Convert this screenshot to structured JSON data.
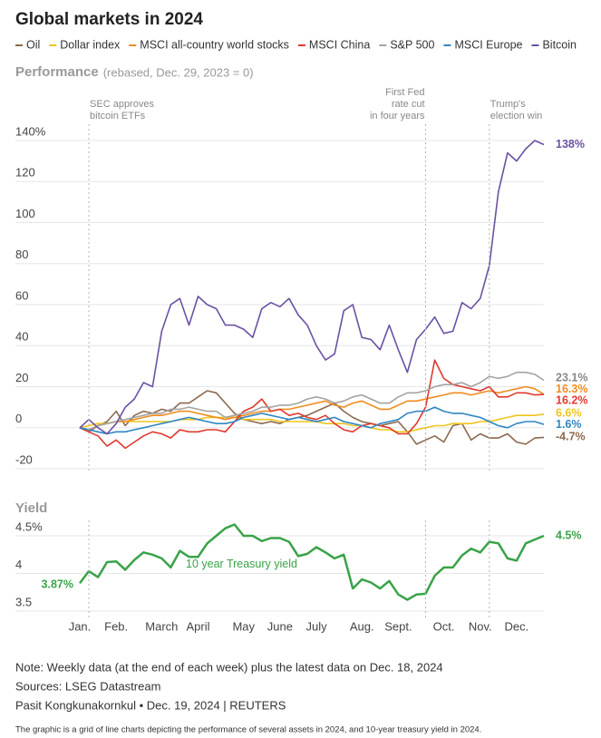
{
  "title": "Global markets in 2024",
  "chart_data": [
    {
      "type": "line",
      "title": "Performance",
      "subtitle": "(rebased, Dec. 29, 2023 = 0)",
      "ylim": [
        -20,
        140
      ],
      "yticks": [
        {
          "value": 140,
          "label": "140%"
        },
        120,
        100,
        80,
        60,
        40,
        20,
        0,
        -20
      ],
      "grid": true,
      "legend": "top",
      "annotations": [
        {
          "lines": [
            "SEC approves",
            "bitcoin ETFs"
          ],
          "x": 1,
          "align": "left"
        },
        {
          "lines": [
            "First Fed",
            "rate cut",
            "in four years"
          ],
          "x": 38,
          "align": "right"
        },
        {
          "lines": [
            "Trump's",
            "election win"
          ],
          "x": 45,
          "align": "left"
        }
      ],
      "series": [
        {
          "name": "Oil",
          "color": "#8c6a4f",
          "end_label": "-4.7%",
          "values": [
            0,
            -2,
            1,
            3,
            8,
            1,
            6,
            8,
            7,
            9,
            8,
            12,
            12,
            15,
            18,
            17,
            12,
            7,
            4,
            3,
            2,
            3,
            2,
            4,
            5,
            6,
            8,
            10,
            12,
            8,
            5,
            3,
            2,
            1,
            2,
            3,
            -2,
            -8,
            -6,
            -4,
            -7,
            1,
            2,
            -6,
            -3,
            -5,
            -5,
            -3,
            -7,
            -8,
            -5,
            -4.7
          ]
        },
        {
          "name": "Dollar index",
          "color": "#efc51c",
          "end_label": "6.6%",
          "values": [
            0,
            1,
            2,
            2,
            3,
            3,
            3,
            3,
            3,
            3,
            3,
            4,
            4,
            4,
            5,
            5,
            5,
            5,
            4,
            4,
            4,
            4,
            3,
            3,
            3,
            3,
            3,
            2,
            2,
            2,
            1,
            1,
            0,
            -1,
            -1,
            -2,
            -2,
            -1,
            0,
            1,
            1,
            2,
            2,
            2,
            3,
            3,
            4,
            5,
            6,
            6,
            6,
            6.6
          ]
        },
        {
          "name": "MSCI all-country world stocks",
          "color": "#f08c1f",
          "end_label": "16.3%",
          "values": [
            0,
            -1,
            1,
            2,
            3,
            3,
            4,
            5,
            6,
            6,
            7,
            8,
            8,
            7,
            6,
            5,
            4,
            5,
            6,
            7,
            8,
            8,
            9,
            9,
            10,
            11,
            12,
            13,
            11,
            10,
            12,
            13,
            11,
            9,
            9,
            11,
            13,
            13,
            14,
            15,
            16,
            17,
            17,
            16,
            17,
            18,
            17,
            18,
            19,
            20,
            19,
            16.3
          ]
        },
        {
          "name": "MSCI China",
          "color": "#e0392d",
          "end_label": "16.2%",
          "values": [
            0,
            -2,
            -4,
            -9,
            -6,
            -10,
            -7,
            -4,
            -2,
            -3,
            -5,
            -1,
            -2,
            -2,
            -1,
            -1,
            -2,
            3,
            8,
            10,
            14,
            8,
            9,
            6,
            7,
            5,
            4,
            6,
            2,
            -1,
            -2,
            1,
            2,
            1,
            0,
            -3,
            -3,
            2,
            10,
            33,
            24,
            21,
            20,
            19,
            18,
            20,
            15,
            15,
            17,
            17,
            16,
            16.2
          ]
        },
        {
          "name": "S&P 500",
          "color": "#a3a3a3",
          "end_label": "23.1%",
          "values": [
            0,
            -1,
            1,
            2,
            3,
            4,
            5,
            6,
            7,
            7,
            9,
            9,
            10,
            9,
            8,
            8,
            5,
            6,
            7,
            8,
            10,
            10,
            11,
            11,
            12,
            14,
            15,
            14,
            12,
            13,
            15,
            16,
            14,
            12,
            12,
            15,
            17,
            17,
            18,
            20,
            21,
            21,
            22,
            20,
            22,
            25,
            24,
            25,
            27,
            27,
            26,
            23.1
          ]
        },
        {
          "name": "MSCI Europe",
          "color": "#2f86c3",
          "end_label": "1.6%",
          "values": [
            0,
            -1,
            -2,
            -3,
            -2,
            -2,
            -1,
            0,
            1,
            2,
            3,
            4,
            5,
            4,
            3,
            2,
            2,
            3,
            5,
            6,
            7,
            6,
            5,
            4,
            5,
            4,
            3,
            4,
            5,
            3,
            2,
            1,
            0,
            2,
            3,
            4,
            7,
            8,
            8,
            10,
            8,
            7,
            7,
            6,
            5,
            3,
            1,
            0,
            2,
            3,
            3,
            1.6
          ]
        },
        {
          "name": "Bitcoin",
          "color": "#6b51a5",
          "end_label": "138%",
          "values": [
            0,
            4,
            0,
            -3,
            2,
            10,
            14,
            22,
            20,
            47,
            60,
            63,
            50,
            64,
            60,
            58,
            50,
            50,
            48,
            44,
            58,
            61,
            59,
            63,
            55,
            50,
            40,
            33,
            36,
            57,
            60,
            44,
            43,
            38,
            50,
            38,
            27,
            43,
            48,
            54,
            46,
            47,
            61,
            58,
            63,
            79,
            115,
            134,
            130,
            136,
            140,
            138
          ]
        }
      ]
    },
    {
      "type": "line",
      "title": "Yield",
      "categories": [
        "Jan.",
        null,
        null,
        null,
        "Feb.",
        null,
        null,
        null,
        null,
        "March",
        null,
        null,
        null,
        "April",
        null,
        null,
        null,
        null,
        "May",
        null,
        null,
        null,
        "June",
        null,
        null,
        null,
        "July",
        null,
        null,
        null,
        null,
        "Aug.",
        null,
        null,
        null,
        "Sept.",
        null,
        null,
        null,
        null,
        "Oct.",
        null,
        null,
        null,
        "Nov.",
        null,
        null,
        null,
        "Dec.",
        null,
        null,
        null
      ],
      "ylim": [
        3.5,
        4.7
      ],
      "yticks": [
        {
          "value": 4.5,
          "label": "4.5%"
        },
        4,
        3.5
      ],
      "grid": true,
      "series": [
        {
          "name": "10 year Treasury yield",
          "color": "#39a348",
          "start_label": "3.87%",
          "end_label": "4.5%",
          "values": [
            3.87,
            4.03,
            3.95,
            4.15,
            4.16,
            4.05,
            4.18,
            4.28,
            4.25,
            4.2,
            4.08,
            4.3,
            4.22,
            4.22,
            4.4,
            4.5,
            4.6,
            4.65,
            4.5,
            4.5,
            4.43,
            4.47,
            4.47,
            4.42,
            4.23,
            4.26,
            4.35,
            4.28,
            4.2,
            4.25,
            3.8,
            3.92,
            3.88,
            3.8,
            3.9,
            3.72,
            3.65,
            3.72,
            3.73,
            3.97,
            4.08,
            4.08,
            4.24,
            4.33,
            4.28,
            4.42,
            4.4,
            4.2,
            4.17,
            4.4,
            4.45,
            4.5
          ]
        }
      ]
    }
  ],
  "footer": {
    "note": "Note: Weekly data (at the end of each week) plus the latest data on Dec. 18, 2024",
    "sources": "Sources: LSEG Datastream",
    "byline": "Pasit Kongkunakornkul • Dec. 19, 2024 | REUTERS",
    "description": "The graphic is a grid of line charts depicting the performance of several assets in 2024, and 10-year treasury yield in 2024."
  }
}
